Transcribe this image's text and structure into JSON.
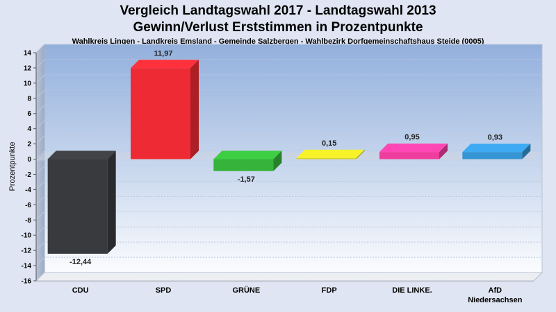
{
  "title_line1": "Vergleich Landtagswahl 2017 - Landtagswahl 2013",
  "title_line2": "Gewinn/Verlust Erststimmen in Prozentpunkte",
  "subtitle": "Wahlkreis Lingen - Landkreis Emsland - Gemeinde Salzbergen - Wahlbezirk Dorfgemeinschaftshaus Steide (0005)",
  "chart_data": {
    "type": "bar",
    "title": "Vergleich Landtagswahl 2017 - Landtagswahl 2013",
    "subtitle": "Gewinn/Verlust Erststimmen in Prozentpunkte",
    "ylabel": "Prozentpunkte",
    "ylim": [
      -16,
      14
    ],
    "yticks": [
      14,
      12,
      10,
      8,
      6,
      4,
      2,
      0,
      -2,
      -4,
      -6,
      -8,
      -10,
      -12,
      -14,
      -16
    ],
    "grid": true,
    "categories": [
      [
        "CDU"
      ],
      [
        "SPD"
      ],
      [
        "GRÜNE"
      ],
      [
        "FDP"
      ],
      [
        "DIE LINKE."
      ],
      [
        "AfD",
        "Niedersachsen"
      ]
    ],
    "values": [
      -12.44,
      11.97,
      -1.57,
      0.15,
      0.95,
      0.93
    ],
    "value_labels": [
      "-12,44",
      "11,97",
      "-1,57",
      "0,15",
      "0,95",
      "0,93"
    ],
    "colors": [
      "#393a3e",
      "#ee2b34",
      "#36b33b",
      "#d7d323",
      "#ef3d9d",
      "#3594d3"
    ]
  }
}
